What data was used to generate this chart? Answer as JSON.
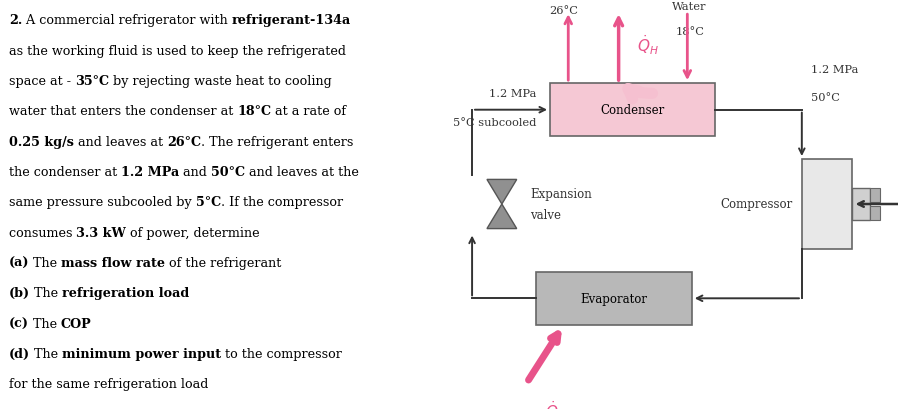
{
  "bg_color": "#ffffff",
  "pink": "#e8538a",
  "light_pink": "#f5c0d0",
  "dark_gray": "#333333",
  "med_gray": "#888888",
  "box_gray": "#c0c0c0",
  "condenser_fill": "#f5c8d4",
  "evaporator_fill": "#b8b8b8",
  "compressor_fill": "#e8e8e8",
  "fontsize_main": 9.2,
  "fontsize_diagram": 8.5,
  "lines": [
    {
      "t": "2. A commercial refrigerator with refrigerant-134a",
      "b": [
        "2.",
        "refrigerant-134a"
      ]
    },
    {
      "t": "as the working fluid is used to keep the refrigerated",
      "b": []
    },
    {
      "t": "space at - 35°C by rejecting waste heat to cooling",
      "b": [
        "35°C"
      ]
    },
    {
      "t": "water that enters the condenser at 18°C at a rate of",
      "b": [
        "18°C"
      ]
    },
    {
      "t": "0.25 kg/s and leaves at 26°C. The refrigerant enters",
      "b": [
        "0.25 kg/s",
        "26°C"
      ]
    },
    {
      "t": "the condenser at 1.2 MPa and 50°C and leaves at the",
      "b": [
        "1.2 MPa",
        "50°C"
      ]
    },
    {
      "t": "same pressure subcooled by 5°C. If the compressor",
      "b": [
        "5°C"
      ]
    },
    {
      "t": "consumes 3.3 kW of power, determine",
      "b": [
        "3.3 kW"
      ]
    },
    {
      "t": "(a) The mass flow rate of the refrigerant",
      "b": [
        "(a)",
        "mass flow rate"
      ]
    },
    {
      "t": "(b) The refrigeration load",
      "b": [
        "(b)",
        "refrigeration load"
      ]
    },
    {
      "t": "(c) The COP",
      "b": [
        "(c)",
        "COP"
      ]
    },
    {
      "t": "(d) The minimum power input to the compressor",
      "b": [
        "(d)",
        "minimum power input"
      ]
    },
    {
      "t": "for the same refrigeration load",
      "b": []
    }
  ]
}
